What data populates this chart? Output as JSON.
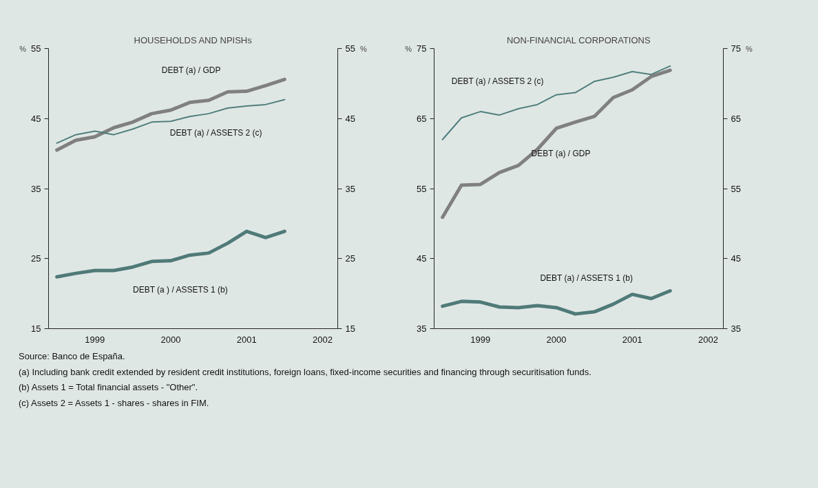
{
  "chart_data": [
    {
      "type": "line",
      "title": "HOUSEHOLDS AND NPISHs",
      "ylabel": "%",
      "y2label": "%",
      "x": [
        1999,
        1999.25,
        1999.5,
        1999.75,
        2000,
        2000.25,
        2000.5,
        2000.75,
        2001,
        2001.25,
        2001.5,
        2001.75,
        2002
      ],
      "xlim": [
        1998.89,
        2002.7
      ],
      "xticks": [
        {
          "value": 1999.5,
          "label": "1999"
        },
        {
          "value": 2000.5,
          "label": "2000"
        },
        {
          "value": 2001.5,
          "label": "2001"
        },
        {
          "value": 2002.5,
          "label": "2002"
        }
      ],
      "ylim": [
        15,
        55
      ],
      "yticks": [
        15,
        25,
        35,
        45,
        55
      ],
      "y2lim": [
        15,
        55
      ],
      "y2ticks": [
        15,
        25,
        35,
        45,
        55
      ],
      "line_style": "solid",
      "series": [
        {
          "name": "DEBT (a) / GDP",
          "color": "#808080",
          "values": [
            40.5,
            41.9,
            42.4,
            43.7,
            44.5,
            45.7,
            46.2,
            47.3,
            47.6,
            48.8,
            48.9,
            49.7,
            50.6
          ]
        },
        {
          "name": "DEBT (a) / ASSETS 2 (c)",
          "color": "#4f7f7c",
          "values": [
            41.5,
            42.7,
            43.2,
            42.7,
            43.5,
            44.5,
            44.6,
            45.3,
            45.7,
            46.5,
            46.8,
            47.0,
            47.7
          ]
        },
        {
          "name": "DEBT (a ) / ASSETS 1 (b)",
          "color": "#4f7a77",
          "values": [
            22.4,
            22.9,
            23.3,
            23.3,
            23.8,
            24.6,
            24.7,
            25.5,
            25.8,
            27.2,
            28.9,
            28.0,
            28.9
          ]
        }
      ],
      "annotations": [
        "Source: Banco de España.",
        "(a)  Including bank credit extended by resident credit institutions, foreign loans, fixed-income securities and financing through securitisation funds.",
        "(b)  Assets 1 = Total financial assets - \"Other\".",
        "(c)  Assets 2 = Assets 1  - shares - shares in FIM."
      ]
    },
    {
      "type": "line",
      "title": "NON-FINANCIAL CORPORATIONS",
      "ylabel": "%",
      "y2label": "%",
      "x": [
        1999,
        1999.25,
        1999.5,
        1999.75,
        2000,
        2000.25,
        2000.5,
        2000.75,
        2001,
        2001.25,
        2001.5,
        2001.75,
        2002
      ],
      "xlim": [
        1998.89,
        2002.7
      ],
      "xticks": [
        {
          "value": 1999.5,
          "label": "1999"
        },
        {
          "value": 2000.5,
          "label": "2000"
        },
        {
          "value": 2001.5,
          "label": "2001"
        },
        {
          "value": 2002.5,
          "label": "2002"
        }
      ],
      "ylim": [
        35,
        75
      ],
      "yticks": [
        35,
        45,
        55,
        65,
        75
      ],
      "y2lim": [
        35,
        75
      ],
      "y2ticks": [
        35,
        45,
        55,
        65,
        75
      ],
      "line_style": "solid",
      "series": [
        {
          "name": "DEBT (a) / ASSETS 2 (c)",
          "color": "#4f7f7c",
          "values": [
            62.0,
            65.1,
            66.0,
            65.5,
            66.4,
            67.0,
            68.4,
            68.7,
            70.3,
            70.9,
            71.7,
            71.3,
            72.5
          ]
        },
        {
          "name": "DEBT (a) / GDP",
          "color": "#808080",
          "values": [
            50.9,
            55.5,
            55.6,
            57.3,
            58.3,
            60.6,
            63.6,
            64.5,
            65.3,
            68.0,
            69.1,
            71.0,
            71.9
          ]
        },
        {
          "name": "DEBT (a) / ASSETS 1 (b)",
          "color": "#4f7a77",
          "values": [
            38.2,
            38.9,
            38.8,
            38.1,
            38.0,
            38.3,
            38.0,
            37.1,
            37.4,
            38.5,
            39.9,
            39.3,
            40.4
          ]
        }
      ]
    }
  ]
}
